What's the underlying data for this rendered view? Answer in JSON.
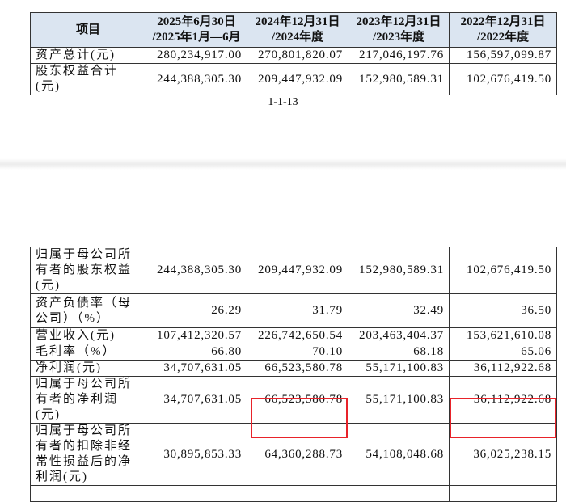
{
  "top_table": {
    "header": [
      [
        "项目"
      ],
      [
        "2025年6月30日",
        "/2025年1月—6月"
      ],
      [
        "2024年12月31日",
        "/2024年度"
      ],
      [
        "2023年12月31日",
        "/2023年度"
      ],
      [
        "2022年12月31日",
        "/2022年度"
      ]
    ],
    "rows": [
      [
        "资产总计(元)",
        "280,234,917.00",
        "270,801,820.07",
        "217,046,197.76",
        "156,597,099.87"
      ],
      [
        "股东权益合计(元)",
        "244,388,305.30",
        "209,447,932.09",
        "152,980,589.31",
        "102,676,419.50"
      ]
    ]
  },
  "page_number": "1-1-13",
  "bottom_table": {
    "rows": [
      [
        "归属于母公司所有者的股东权益(元)",
        "244,388,305.30",
        "209,447,932.09",
        "152,980,589.31",
        "102,676,419.50"
      ],
      [
        "资产负债率（母公司）（%）",
        "26.29",
        "31.79",
        "32.49",
        "36.50"
      ],
      [
        "营业收入(元)",
        "107,412,320.57",
        "226,742,650.54",
        "203,463,404.37",
        "153,621,610.08"
      ],
      [
        "毛利率（%）",
        "66.80",
        "70.10",
        "68.18",
        "65.06"
      ],
      [
        "净利润(元)",
        "34,707,631.05",
        "66,523,580.78",
        "55,171,100.83",
        "36,112,922.68"
      ],
      [
        "归属于母公司所有者的净利润(元)",
        "34,707,631.05",
        "66,523,580.78",
        "55,171,100.83",
        "36,112,922.68"
      ],
      [
        "归属于母公司所有者的扣除非经常性损益后的净利润(元)",
        "30,895,853.33",
        "64,360,288.73",
        "54,108,048.68",
        "36,025,238.15"
      ]
    ]
  }
}
